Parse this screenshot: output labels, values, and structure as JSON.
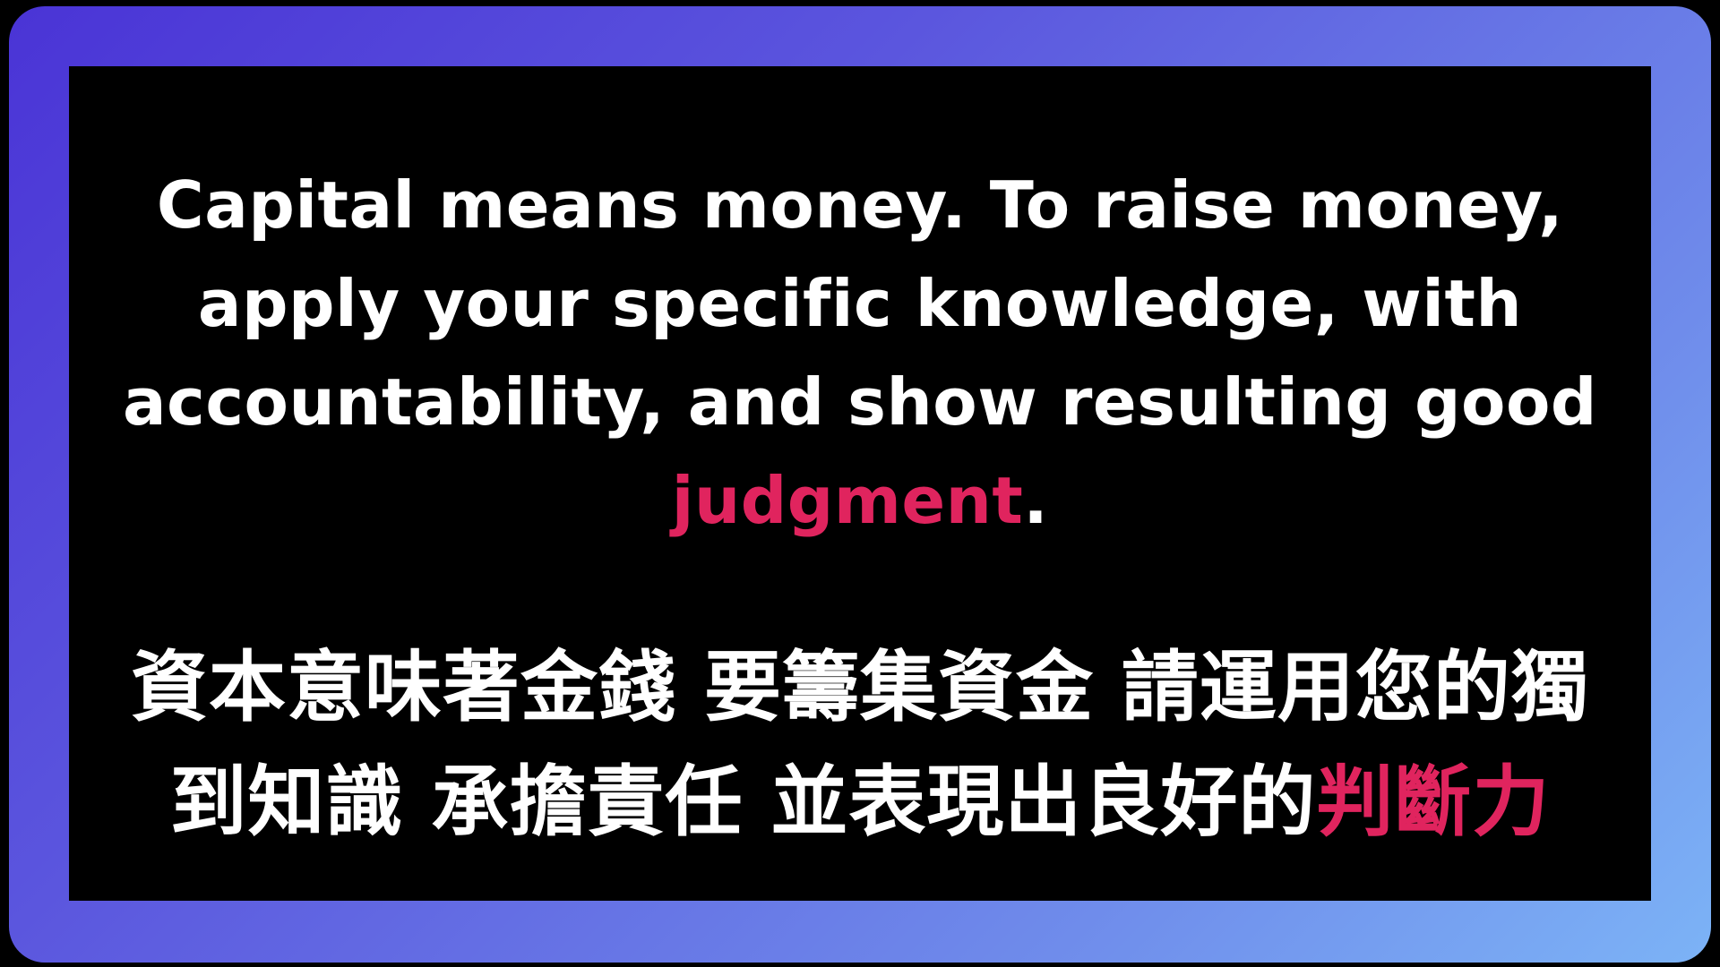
{
  "english": {
    "line1": "Capital means money. To raise money,",
    "line2": "apply your specific knowledge, with",
    "line3": "accountability, and show resulting good",
    "highlight_word": "judgment",
    "trailing": "."
  },
  "chinese": {
    "line1": "資本意味著金錢 要籌集資金 請運用您的獨",
    "line2_prefix": "到知識 承擔責任 並表現出良好的",
    "highlight_word": "判斷力"
  },
  "colors": {
    "text": "#ffffff",
    "highlight": "#e0245e",
    "panel": "#000000",
    "frame_gradient_start": "#4a34d6",
    "frame_gradient_end": "#7cb3f6"
  }
}
